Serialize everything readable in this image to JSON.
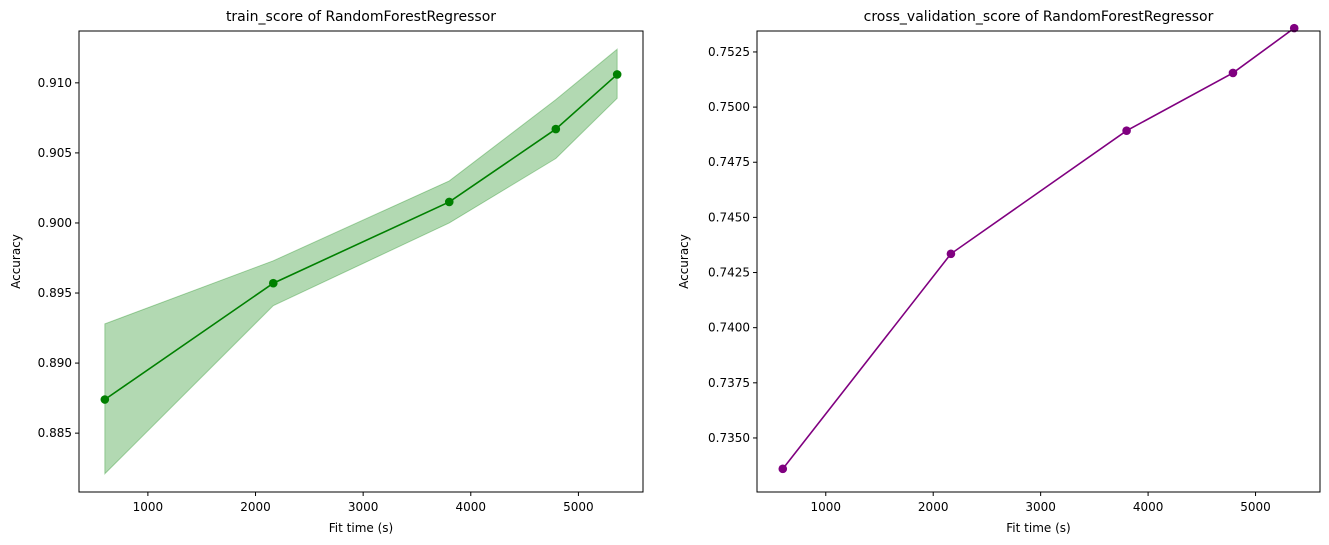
{
  "chart_data": [
    {
      "type": "line",
      "title": "train_score of RandomForestRegressor",
      "xlabel": "Fit time (s)",
      "ylabel": "Accuracy",
      "xlim": [
        360,
        5600
      ],
      "ylim": [
        0.8808,
        0.9137
      ],
      "xticks": [
        1000,
        2000,
        3000,
        4000,
        5000
      ],
      "xtick_labels": [
        "1000",
        "2000",
        "3000",
        "4000",
        "5000"
      ],
      "yticks": [
        0.885,
        0.89,
        0.895,
        0.9,
        0.905,
        0.91
      ],
      "ytick_labels": [
        "0.885",
        "0.890",
        "0.895",
        "0.900",
        "0.905",
        "0.910"
      ],
      "grid": false,
      "series": [
        {
          "x": [
            600,
            2165,
            3800,
            4790,
            5360
          ],
          "values": [
            0.8874,
            0.8957,
            0.9015,
            0.9067,
            0.9106
          ],
          "band_upper": [
            0.8928,
            0.8973,
            0.903,
            0.9088,
            0.9124
          ],
          "band_lower": [
            0.8821,
            0.8941,
            0.9,
            0.9046,
            0.9089
          ],
          "color": "#008000",
          "band_color": "#008000"
        }
      ]
    },
    {
      "type": "line",
      "title": "cross_validation_score of RandomForestRegressor",
      "xlabel": "Fit time (s)",
      "ylabel": "Accuracy",
      "xlim": [
        360,
        5600
      ],
      "ylim": [
        0.73255,
        0.75345
      ],
      "xticks": [
        1000,
        2000,
        3000,
        4000,
        5000
      ],
      "xtick_labels": [
        "1000",
        "2000",
        "3000",
        "4000",
        "5000"
      ],
      "yticks": [
        0.735,
        0.7375,
        0.74,
        0.7425,
        0.745,
        0.7475,
        0.75,
        0.7525
      ],
      "ytick_labels": [
        "0.7350",
        "0.7375",
        "0.7400",
        "0.7425",
        "0.7450",
        "0.7475",
        "0.7500",
        "0.7525"
      ],
      "grid": false,
      "series": [
        {
          "x": [
            600,
            2165,
            3800,
            4790,
            5360
          ],
          "values": [
            0.7336,
            0.74335,
            0.74893,
            0.75155,
            0.75358
          ],
          "color": "#800080"
        }
      ]
    }
  ]
}
